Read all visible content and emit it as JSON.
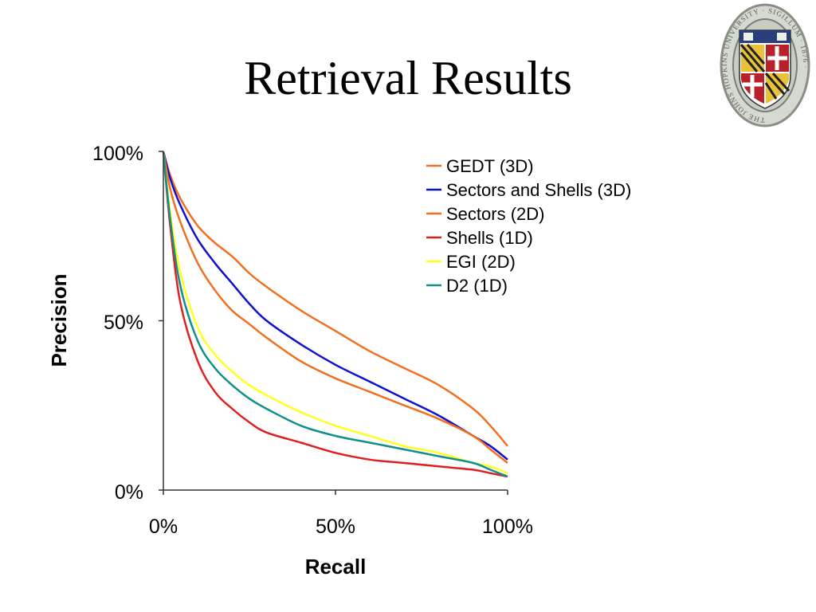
{
  "slide": {
    "title": "Retrieval Results",
    "seal_text": "THE JOHNS HOPKINS UNIVERSITY · SIGILLUM · 1876 ·"
  },
  "chart_data": {
    "type": "line",
    "title": "",
    "xlabel": "Recall",
    "ylabel": "Precision",
    "xlim": [
      0,
      100
    ],
    "ylim": [
      0,
      100
    ],
    "x_ticks": [
      "0%",
      "50%",
      "100%"
    ],
    "y_ticks": [
      "0%",
      "50%",
      "100%"
    ],
    "grid": false,
    "legend_position": "top-right",
    "x": [
      0,
      2,
      5,
      10,
      15,
      20,
      25,
      30,
      40,
      50,
      60,
      70,
      80,
      90,
      95,
      100
    ],
    "series": [
      {
        "name": "GEDT (3D)",
        "color": "#f07020",
        "values": [
          100,
          93,
          86,
          78,
          73,
          69,
          64,
          60,
          53,
          47,
          41,
          36,
          31,
          24,
          19,
          13
        ]
      },
      {
        "name": "Sectors and Shells (3D)",
        "color": "#1010d0",
        "values": [
          100,
          92,
          84,
          74,
          67,
          61,
          55,
          50,
          43,
          37,
          32,
          27,
          22,
          16,
          13,
          9
        ]
      },
      {
        "name": "Sectors (2D)",
        "color": "#f07020",
        "values": [
          100,
          89,
          79,
          67,
          59,
          53,
          49,
          45,
          38,
          33,
          29,
          25,
          21,
          16,
          12,
          8
        ]
      },
      {
        "name": "Shells (1D)",
        "color": "#e02020",
        "values": [
          100,
          78,
          55,
          38,
          29,
          24,
          20,
          17,
          14,
          11,
          9,
          8,
          7,
          6,
          5,
          4
        ]
      },
      {
        "name": "EGI (2D)",
        "color": "#ffff20",
        "values": [
          100,
          82,
          64,
          48,
          40,
          35,
          31,
          28,
          23,
          19,
          16,
          13,
          11,
          8,
          7,
          5
        ]
      },
      {
        "name": "D2 (1D)",
        "color": "#10908a",
        "values": [
          100,
          80,
          60,
          44,
          36,
          31,
          27,
          24,
          19,
          16,
          14,
          12,
          10,
          8,
          6,
          4
        ]
      }
    ]
  }
}
